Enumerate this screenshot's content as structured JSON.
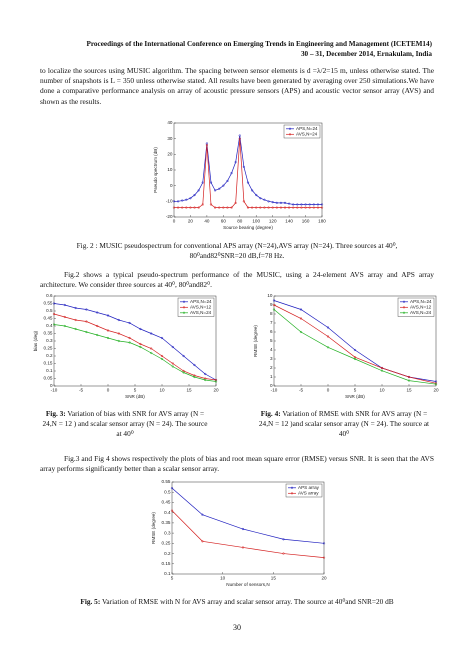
{
  "header": {
    "line1": "Proceedings of the International Conference on Emerging Trends in Engineering and Management (ICETEM14)",
    "line2": "30 – 31, December 2014, Ernakulam, India"
  },
  "paragraphs": [
    "to localize the sources using MUSIC algorithm. The spacing between sensor elements is d =λ/2=15 m, unless otherwise stated. The number of snapshots is L = 350 unless otherwise stated. All results have been generated by averaging over 250 simulations.We have done a comparative performance analysis on array of acoustic pressure sensors (APS) and acoustic vector sensor array (AVS) and shown as the results.",
    "Fig.2 shows a typical pseudo-spectrum performance of the MUSIC, using a 24-element AVS array and APS array architecture. We consider three sources at 40⁰, 80⁰and82⁰.",
    "Fig.3 and Fig 4 shows respectively the plots of bias and root mean square error (RMSE) versus SNR. It is seen that the AVS array performs significantly better than a scalar sensor array."
  ],
  "figures": [
    {
      "caption": {
        "label": "Fig. 2 :",
        "text": "MUSIC pseudospectrum for conventional APS array (N=24),AVS array (N=24). Three sources at 40⁰, 80⁰and82⁰SNR=20 dB,f=78 Hz."
      },
      "chart_data": {
        "type": "line",
        "xlabel": "Source bearing (degree)",
        "ylabel": "Pseudo spectrum (dB)",
        "x": [
          0,
          5,
          10,
          15,
          20,
          25,
          30,
          35,
          40,
          45,
          50,
          55,
          60,
          65,
          70,
          75,
          80,
          85,
          90,
          95,
          100,
          105,
          110,
          115,
          120,
          125,
          130,
          135,
          140,
          145,
          150,
          155,
          160,
          165,
          170,
          175,
          180
        ],
        "series": [
          {
            "name": "APS,N=24",
            "color": "#1f1fbf",
            "values": [
              -10,
              -10,
              -9.5,
              -9,
              -8,
              -6,
              -3,
              2,
              27,
              2,
              -3,
              -2,
              0,
              3,
              8,
              15,
              32,
              12,
              2,
              -3,
              -6,
              -8,
              -9,
              -10,
              -10.5,
              -11,
              -11,
              -11,
              -11.5,
              -12,
              -12,
              -12,
              -12,
              -12,
              -12,
              -12,
              -12
            ]
          },
          {
            "name": "AVS,N=24",
            "color": "#d42020",
            "values": [
              -14,
              -14,
              -14,
              -14,
              -14,
              -14,
              -14,
              -12,
              26,
              -12,
              -14,
              -14,
              -14,
              -14,
              -14,
              -11,
              30,
              -10,
              -14,
              -14,
              -14,
              -14,
              -14,
              -14,
              -14,
              -14,
              -14,
              -14,
              -14,
              -14,
              -14,
              -14,
              -14,
              -14,
              -14,
              -14,
              -14
            ]
          }
        ],
        "xlim": [
          0,
          180
        ],
        "xticks": [
          0,
          20,
          40,
          60,
          80,
          100,
          120,
          140,
          160,
          180
        ],
        "ylim": [
          -20,
          40
        ],
        "yticks": [
          -20,
          -10,
          0,
          10,
          20,
          30,
          40
        ],
        "legend": "upper right"
      }
    },
    {
      "caption": {
        "label": "Fig. 3:",
        "text": "Variation of bias with SNR for AVS array (N = 24,N = 12 ) and scalar sensor array (N = 24). The source at 40⁰"
      },
      "chart_data": {
        "type": "line",
        "xlabel": "SNR (dB)",
        "ylabel": "bias (deg)",
        "x": [
          -10,
          -8,
          -6,
          -4,
          -2,
          0,
          2,
          4,
          6,
          8,
          10,
          12,
          14,
          16,
          18,
          20
        ],
        "series": [
          {
            "name": "APS,N=24",
            "color": "#1f1fbf",
            "values": [
              0.55,
              0.54,
              0.52,
              0.51,
              0.49,
              0.47,
              0.44,
              0.42,
              0.38,
              0.35,
              0.32,
              0.26,
              0.2,
              0.14,
              0.08,
              0.04
            ]
          },
          {
            "name": "AVS,N=12",
            "color": "#d42020",
            "values": [
              0.48,
              0.46,
              0.44,
              0.43,
              0.4,
              0.37,
              0.35,
              0.32,
              0.28,
              0.25,
              0.2,
              0.15,
              0.1,
              0.07,
              0.05,
              0.04
            ]
          },
          {
            "name": "AVS,N=24",
            "color": "#22b022",
            "values": [
              0.41,
              0.4,
              0.38,
              0.36,
              0.34,
              0.32,
              0.3,
              0.29,
              0.26,
              0.22,
              0.18,
              0.13,
              0.09,
              0.06,
              0.04,
              0.03
            ]
          }
        ],
        "xlim": [
          -10,
          20
        ],
        "xticks": [
          -10,
          -5,
          0,
          5,
          10,
          15,
          20
        ],
        "ylim": [
          0,
          0.6
        ],
        "yticks": [
          0,
          0.05,
          0.1,
          0.15,
          0.2,
          0.25,
          0.3,
          0.35,
          0.4,
          0.45,
          0.5,
          0.55,
          0.6
        ],
        "legend": "upper right"
      }
    },
    {
      "caption": {
        "label": "Fig. 4:",
        "text": "Variation of RMSE with SNR for AVS array (N = 24,N = 12 )and scalar sensor array (N = 24). The source at 40⁰"
      },
      "chart_data": {
        "type": "line",
        "xlabel": "SNR (dB)",
        "ylabel": "RMSE (degree)",
        "x": [
          -10,
          -5,
          0,
          5,
          10,
          15,
          20
        ],
        "series": [
          {
            "name": "APS,N=24",
            "color": "#1f1fbf",
            "values": [
              9.5,
              8.5,
              6.5,
              4,
              2,
              1,
              0.5
            ]
          },
          {
            "name": "AVS,N=12",
            "color": "#d42020",
            "values": [
              9,
              7.5,
              5.5,
              3.2,
              2,
              1,
              0.3
            ]
          },
          {
            "name": "AVS,N=24",
            "color": "#22b022",
            "values": [
              8.5,
              6,
              4.3,
              3,
              1.7,
              0.6,
              0.2
            ]
          }
        ],
        "xlim": [
          -10,
          20
        ],
        "xticks": [
          -10,
          -5,
          0,
          5,
          10,
          15,
          20
        ],
        "ylim": [
          0,
          10
        ],
        "yticks": [
          0,
          1,
          2,
          3,
          4,
          5,
          6,
          7,
          8,
          9,
          10
        ],
        "legend": "upper right"
      }
    },
    {
      "caption": {
        "label": "Fig. 5:",
        "text": " Variation of RMSE with N for AVS array and scalar sensor array. The source at 40⁰and SNR=20 dB"
      },
      "chart_data": {
        "type": "line",
        "xlabel": "Number of sensors,N",
        "ylabel": "RMSE (degree)",
        "x": [
          5,
          8,
          12,
          16,
          20
        ],
        "series": [
          {
            "name": "APS array",
            "color": "#1f1fbf",
            "values": [
              0.52,
              0.39,
              0.32,
              0.27,
              0.25
            ]
          },
          {
            "name": "AVS array",
            "color": "#d42020",
            "values": [
              0.41,
              0.26,
              0.23,
              0.2,
              0.18
            ]
          }
        ],
        "xlim": [
          5,
          20
        ],
        "xticks": [
          5,
          10,
          15,
          20
        ],
        "ylim": [
          0.1,
          0.55
        ],
        "yticks": [
          0.1,
          0.15,
          0.2,
          0.25,
          0.3,
          0.35,
          0.4,
          0.45,
          0.5,
          0.55
        ],
        "legend": "upper right"
      }
    }
  ],
  "page_number": "30"
}
